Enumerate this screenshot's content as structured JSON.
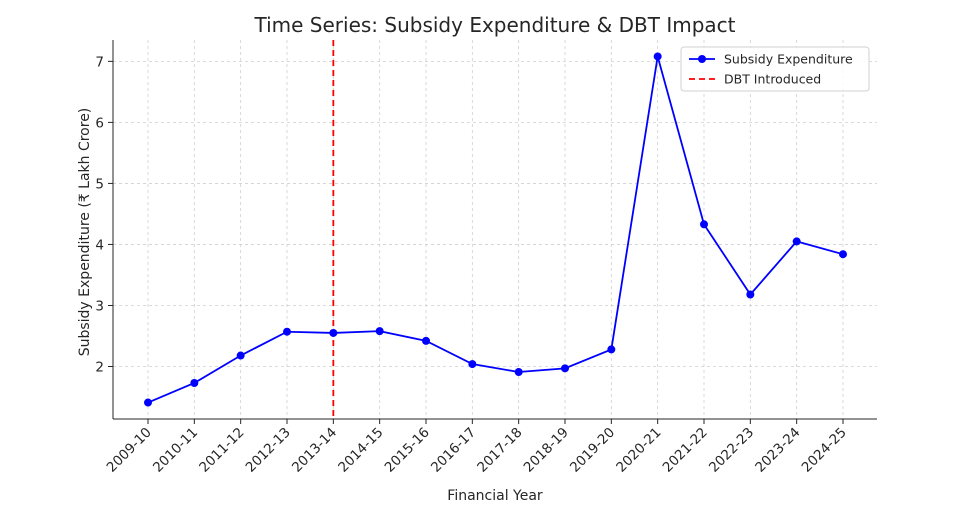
{
  "chart_data": {
    "type": "line",
    "title": "Time Series: Subsidy Expenditure & DBT Impact",
    "xlabel": "Financial Year",
    "ylabel": "Subsidy Expenditure (₹ Lakh Crore)",
    "categories": [
      "2009-10",
      "2010-11",
      "2011-12",
      "2012-13",
      "2013-14",
      "2014-15",
      "2015-16",
      "2016-17",
      "2017-18",
      "2018-19",
      "2019-20",
      "2020-21",
      "2021-22",
      "2022-23",
      "2023-24",
      "2024-25"
    ],
    "series": [
      {
        "name": "Subsidy Expenditure",
        "values": [
          1.41,
          1.73,
          2.18,
          2.57,
          2.55,
          2.58,
          2.42,
          2.04,
          1.91,
          1.97,
          2.28,
          7.08,
          4.33,
          3.18,
          4.05,
          3.84
        ],
        "color": "#0000ff"
      }
    ],
    "annotations": [
      {
        "name": "DBT Introduced",
        "type": "vline",
        "x": "2013-14",
        "color": "#ff0000",
        "style": "dashed"
      }
    ],
    "ylim": [
      1.14,
      7.35
    ],
    "yticks": [
      2,
      3,
      4,
      5,
      6,
      7
    ],
    "grid": true,
    "legend": "top-right"
  }
}
